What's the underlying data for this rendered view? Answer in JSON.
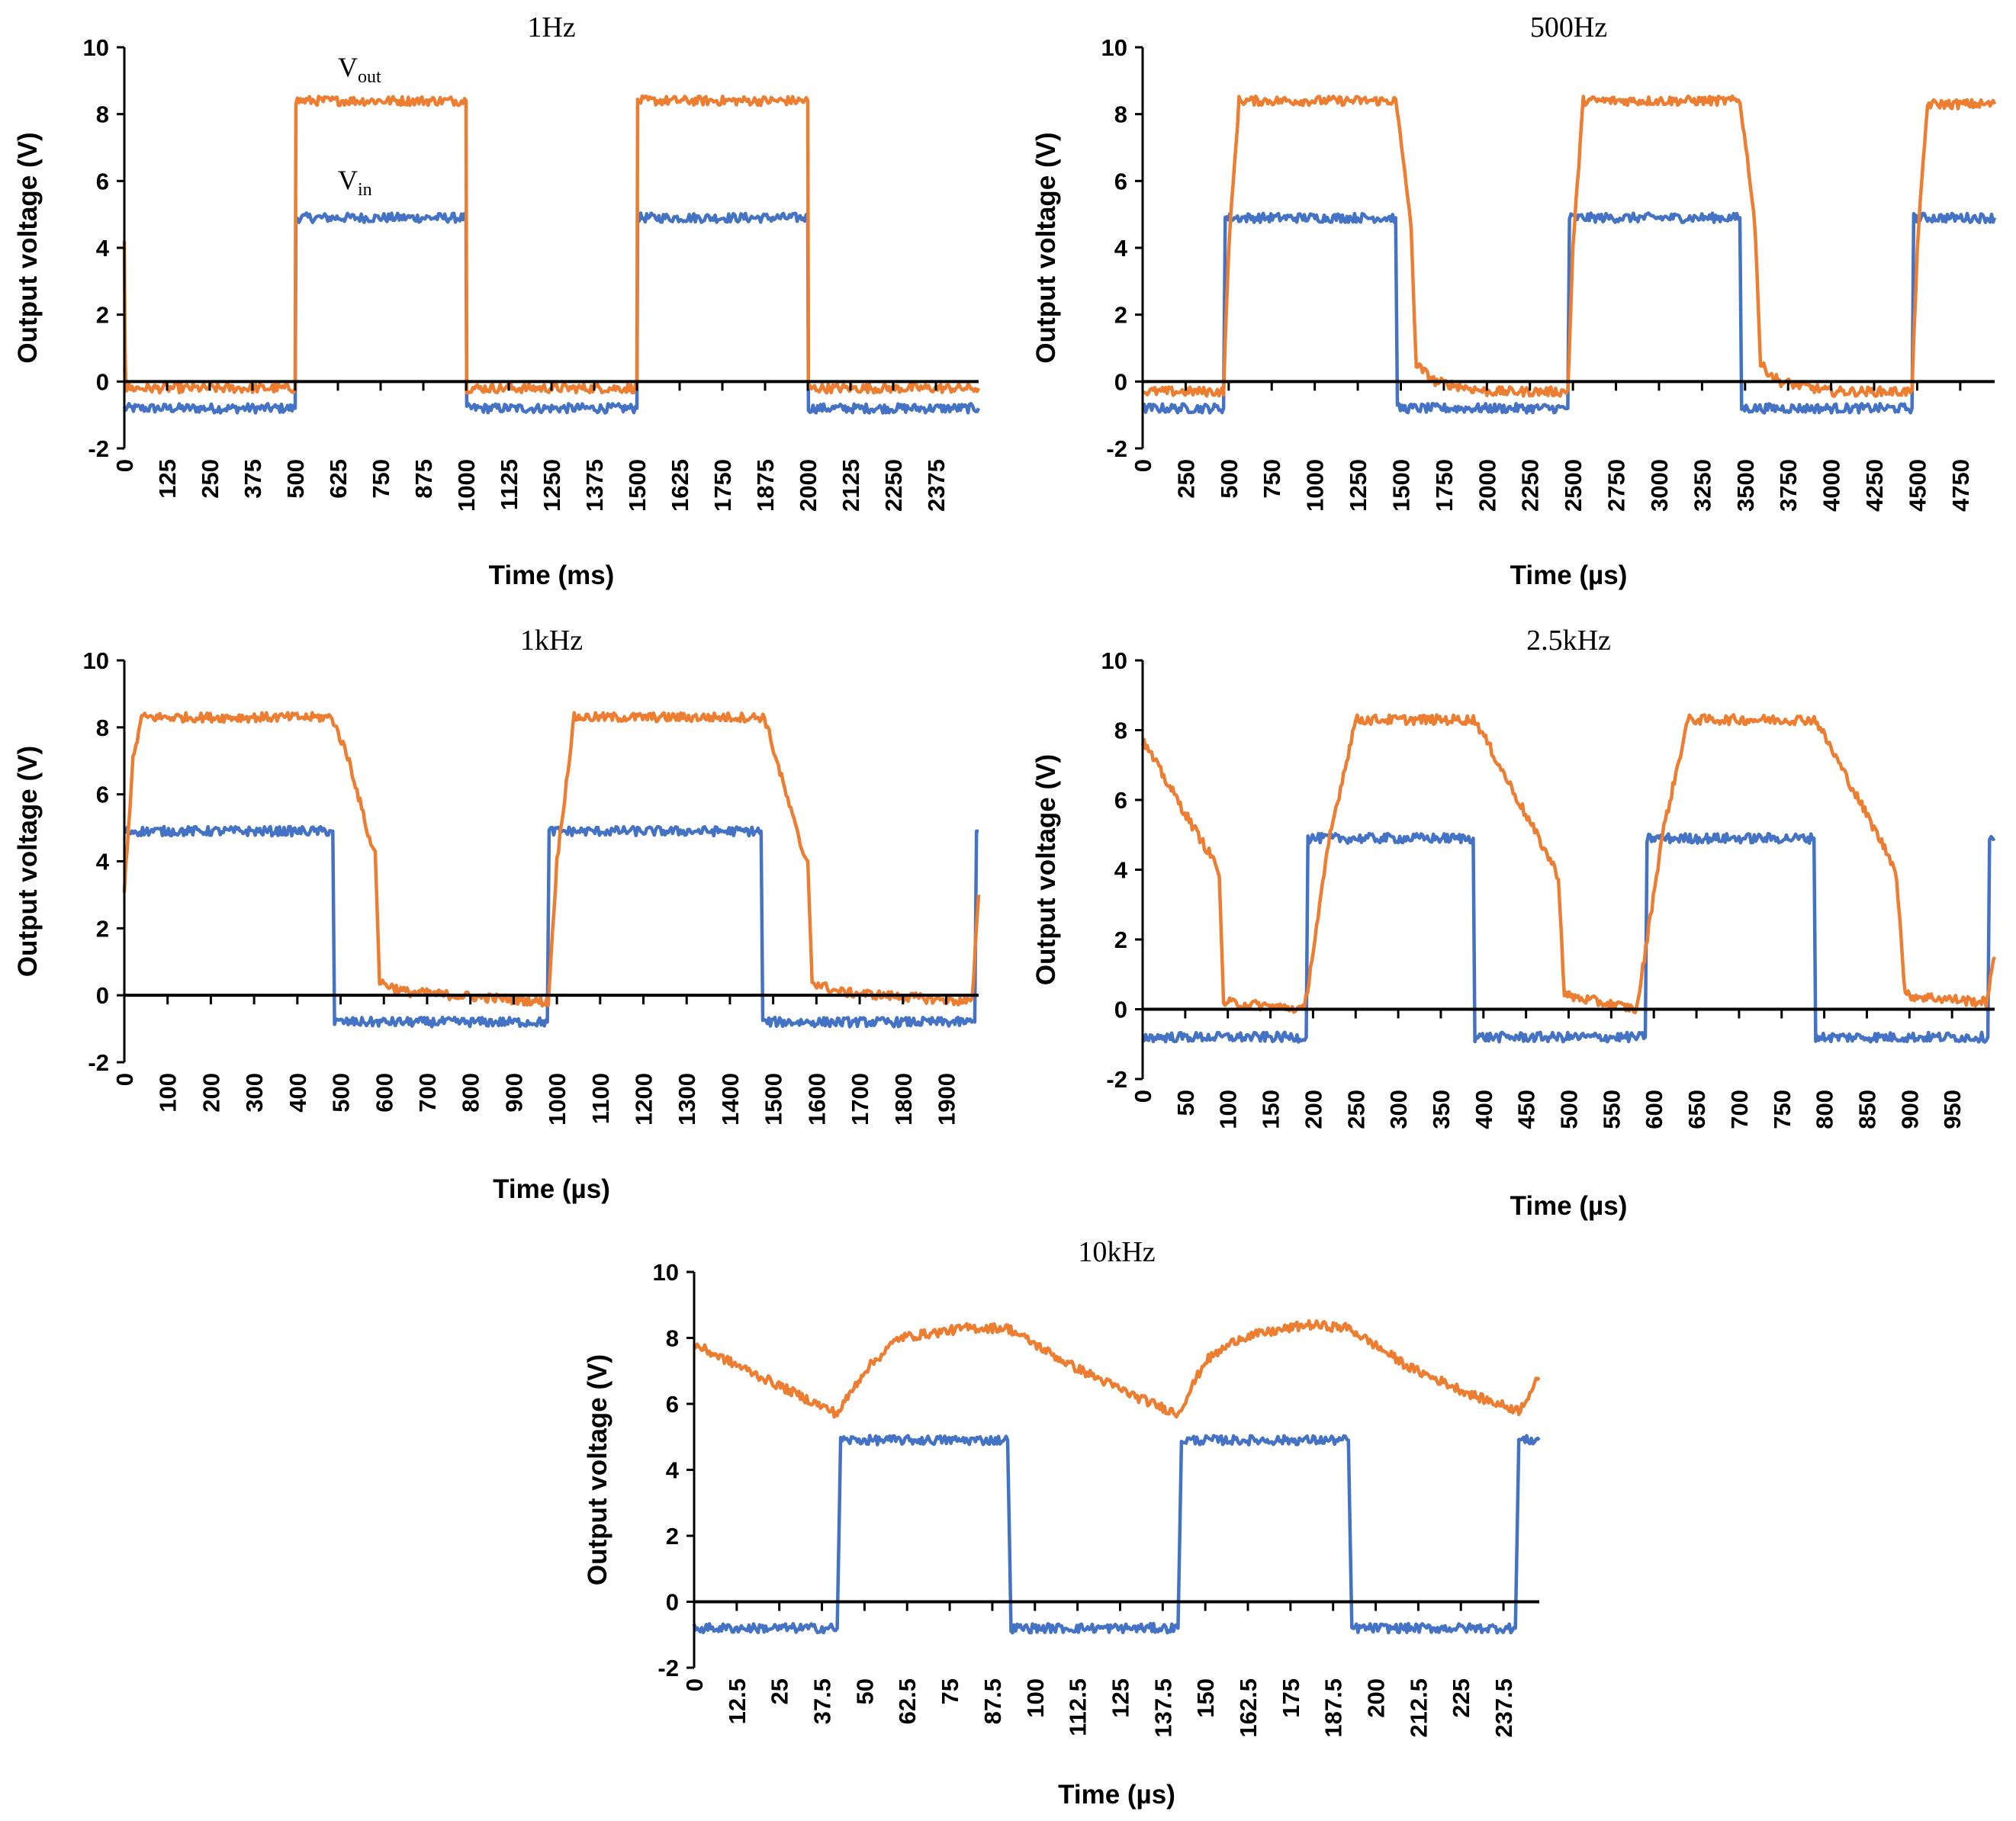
{
  "colors": {
    "vin": "#4472C4",
    "vout": "#ED7D31",
    "axis": "#000000"
  },
  "chart_data": [
    {
      "type": "line",
      "title": "1Hz",
      "xlabel": "Time (ms)",
      "ylabel": "Output voltage (V)",
      "xlim": [
        0,
        2500
      ],
      "ylim": [
        -2,
        10
      ],
      "yticks": [
        "-2",
        "0",
        "2",
        "4",
        "6",
        "8",
        "10"
      ],
      "xticks": [
        "0",
        "125",
        "250",
        "375",
        "500",
        "625",
        "750",
        "875",
        "1000",
        "1125",
        "1250",
        "1375",
        "1500",
        "1625",
        "1750",
        "1875",
        "2000",
        "2125",
        "2250",
        "2375"
      ],
      "grid": false,
      "annotations": [
        {
          "main": "V",
          "sub": "out",
          "series": "Vout"
        },
        {
          "main": "V",
          "sub": "in",
          "series": "Vin"
        }
      ],
      "series": [
        {
          "key": "Vin",
          "color": "#4472C4",
          "x": [
            0,
            500,
            502,
            1000,
            1002,
            1500,
            1502,
            2000,
            2002,
            2500
          ],
          "y": [
            -0.8,
            -0.8,
            4.9,
            4.9,
            -0.8,
            -0.8,
            4.9,
            4.9,
            -0.8,
            -0.8
          ]
        },
        {
          "key": "Vout",
          "color": "#ED7D31",
          "x": [
            0,
            2,
            5,
            500,
            502,
            1000,
            1002,
            1500,
            1502,
            2000,
            2002,
            2500
          ],
          "y": [
            4.2,
            1.0,
            -0.2,
            -0.2,
            8.4,
            8.4,
            -0.2,
            -0.2,
            8.4,
            8.4,
            -0.2,
            -0.2
          ]
        }
      ]
    },
    {
      "type": "line",
      "title": "500Hz",
      "xlabel": "Time (µs)",
      "ylabel": "Output voltage (V)",
      "xlim": [
        0,
        4950
      ],
      "ylim": [
        -2,
        10
      ],
      "yticks": [
        "-2",
        "0",
        "2",
        "4",
        "6",
        "8",
        "10"
      ],
      "xticks": [
        "0",
        "250",
        "500",
        "750",
        "1000",
        "1250",
        "1500",
        "1750",
        "2000",
        "2250",
        "2500",
        "2750",
        "3000",
        "3250",
        "3500",
        "3750",
        "4000",
        "4250",
        "4500",
        "4750"
      ],
      "grid": false,
      "series": [
        {
          "key": "Vin",
          "color": "#4472C4",
          "x": [
            0,
            470,
            480,
            1470,
            1480,
            2470,
            2480,
            3470,
            3480,
            4470,
            4480,
            4950
          ],
          "y": [
            -0.8,
            -0.8,
            4.9,
            4.9,
            -0.8,
            -0.8,
            4.9,
            4.9,
            -0.8,
            -0.8,
            4.9,
            4.9
          ]
        },
        {
          "key": "Vout",
          "color": "#ED7D31",
          "x": [
            0,
            470,
            500,
            560,
            1470,
            1530,
            1560,
            1590,
            1700,
            2000,
            2470,
            2500,
            2560,
            3470,
            3530,
            3560,
            3590,
            3700,
            4000,
            4470,
            4500,
            4560,
            4950
          ],
          "y": [
            -0.3,
            -0.3,
            4.0,
            8.4,
            8.4,
            6.0,
            4.5,
            0.5,
            0.0,
            -0.3,
            -0.3,
            4.0,
            8.4,
            8.4,
            6.0,
            4.5,
            0.5,
            0.0,
            -0.3,
            -0.3,
            4.0,
            8.3,
            8.3
          ]
        }
      ]
    },
    {
      "type": "line",
      "title": "1kHz",
      "xlabel": "Time (µs)",
      "ylabel": "Output voltage (V)",
      "xlim": [
        0,
        1975
      ],
      "ylim": [
        -2,
        10
      ],
      "yticks": [
        "-2",
        "0",
        "2",
        "4",
        "6",
        "8",
        "10"
      ],
      "xticks": [
        "0",
        "100",
        "200",
        "300",
        "400",
        "500",
        "600",
        "700",
        "800",
        "900",
        "1000",
        "1100",
        "1200",
        "1300",
        "1400",
        "1500",
        "1600",
        "1700",
        "1800",
        "1900"
      ],
      "grid": false,
      "series": [
        {
          "key": "Vin",
          "color": "#4472C4",
          "x": [
            0,
            482,
            486,
            978,
            982,
            1472,
            1476,
            1966,
            1970,
            1975
          ],
          "y": [
            4.9,
            4.9,
            -0.8,
            -0.8,
            4.9,
            4.9,
            -0.8,
            -0.8,
            4.9,
            4.9
          ]
        },
        {
          "key": "Vout",
          "color": "#ED7D31",
          "x": [
            0,
            20,
            40,
            480,
            520,
            570,
            580,
            590,
            650,
            980,
            1000,
            1040,
            1480,
            1530,
            1570,
            1580,
            1590,
            1650,
            1960,
            1975
          ],
          "y": [
            3.2,
            7.0,
            8.3,
            8.3,
            7.0,
            4.5,
            4.3,
            0.4,
            0.1,
            -0.2,
            4.0,
            8.3,
            8.3,
            6.0,
            4.2,
            4.0,
            0.4,
            0.1,
            -0.2,
            3.0
          ]
        }
      ]
    },
    {
      "type": "line",
      "title": "2.5kHz",
      "xlabel": "Time (µs)",
      "ylabel": "Output voltage (V)",
      "xlim": [
        0,
        1000
      ],
      "ylim": [
        -2,
        10
      ],
      "yticks": [
        "-2",
        "0",
        "2",
        "4",
        "6",
        "8",
        "10"
      ],
      "xticks": [
        "0",
        "50",
        "100",
        "150",
        "200",
        "250",
        "300",
        "350",
        "400",
        "450",
        "500",
        "550",
        "600",
        "650",
        "700",
        "750",
        "800",
        "850",
        "900",
        "950"
      ],
      "grid": false,
      "series": [
        {
          "key": "Vin",
          "color": "#4472C4",
          "x": [
            0,
            192,
            194,
            388,
            390,
            590,
            592,
            788,
            790,
            992,
            994,
            1000
          ],
          "y": [
            -0.8,
            -0.8,
            4.9,
            4.9,
            -0.8,
            -0.8,
            4.9,
            4.9,
            -0.8,
            -0.8,
            4.9,
            4.9
          ]
        },
        {
          "key": "Vout",
          "color": "#ED7D31",
          "x": [
            0,
            60,
            85,
            90,
            95,
            190,
            220,
            250,
            390,
            480,
            488,
            495,
            580,
            610,
            640,
            790,
            880,
            885,
            895,
            990,
            1000
          ],
          "y": [
            7.7,
            5.2,
            4.2,
            3.8,
            0.2,
            0.0,
            5.0,
            8.3,
            8.3,
            4.2,
            3.8,
            0.4,
            0.0,
            5.0,
            8.3,
            8.3,
            4.2,
            3.8,
            0.4,
            0.2,
            1.5
          ]
        }
      ]
    },
    {
      "type": "line",
      "title": "10kHz",
      "xlabel": "Time (µs)",
      "ylabel": "Output voltage (V)",
      "xlim": [
        0,
        248
      ],
      "ylim": [
        -2,
        10
      ],
      "yticks": [
        "-2",
        "0",
        "2",
        "4",
        "6",
        "8",
        "10"
      ],
      "xticks": [
        "0",
        "12.5",
        "25",
        "37.5",
        "50",
        "62.5",
        "75",
        "87.5",
        "100",
        "112.5",
        "125",
        "137.5",
        "150",
        "162.5",
        "175",
        "187.5",
        "200",
        "212.5",
        "225",
        "237.5"
      ],
      "grid": false,
      "series": [
        {
          "key": "Vin",
          "color": "#4472C4",
          "x": [
            0,
            42,
            43,
            92,
            93,
            142,
            143,
            192,
            193,
            241,
            242,
            248
          ],
          "y": [
            -0.8,
            -0.8,
            4.9,
            4.9,
            -0.8,
            -0.8,
            4.9,
            4.9,
            -0.8,
            -0.8,
            4.9,
            4.9
          ]
        },
        {
          "key": "Vout",
          "color": "#ED7D31",
          "x": [
            0,
            20,
            42,
            50,
            60,
            80,
            92,
            110,
            130,
            142,
            150,
            160,
            180,
            192,
            210,
            230,
            242,
            248
          ],
          "y": [
            7.8,
            6.8,
            5.7,
            7.0,
            8.0,
            8.3,
            8.3,
            7.2,
            6.2,
            5.7,
            7.3,
            8.0,
            8.4,
            8.3,
            7.1,
            6.2,
            5.8,
            6.8
          ]
        }
      ]
    }
  ]
}
